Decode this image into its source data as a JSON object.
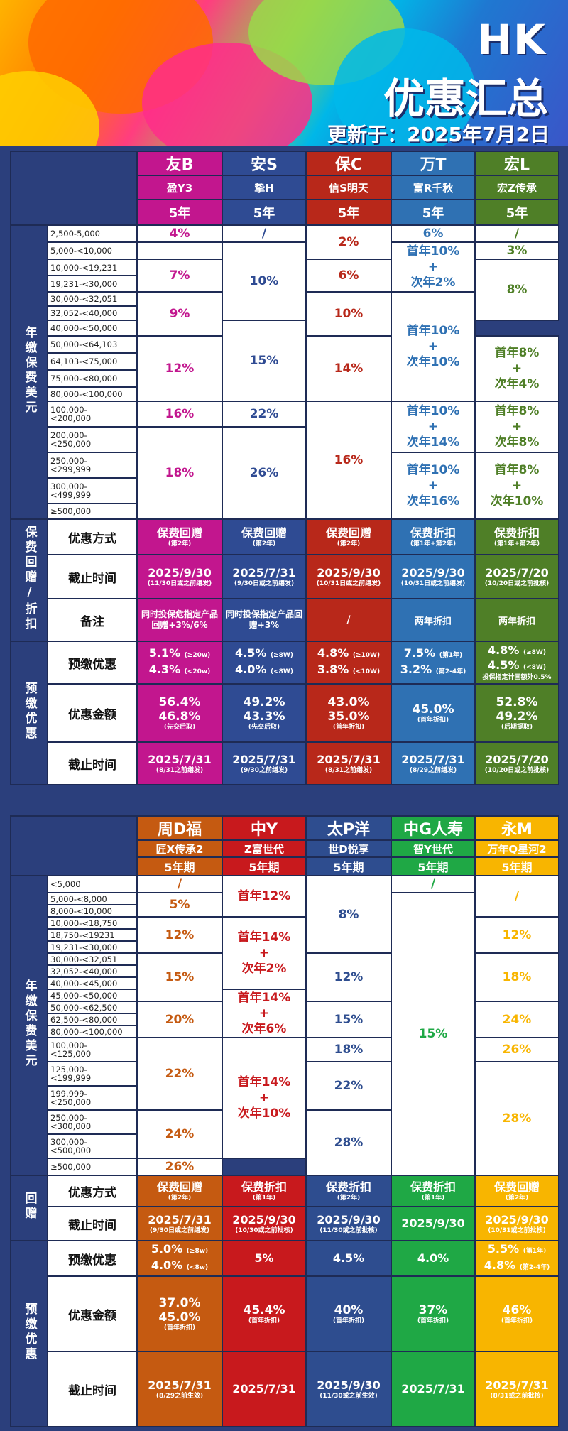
{
  "hero": {
    "hk": "HK",
    "title": "优惠汇总",
    "updated": "更新于：2025年7月2日"
  },
  "t1": {
    "companies": [
      {
        "name": "友B",
        "product": "盈Y3",
        "term": "5年"
      },
      {
        "name": "安S",
        "product": "挚H",
        "term": "5年"
      },
      {
        "name": "保C",
        "product": "信S明天",
        "term": "5年"
      },
      {
        "name": "万T",
        "product": "富R千秋",
        "term": "5年"
      },
      {
        "name": "宏L",
        "product": "宏Z传承",
        "term": "5年"
      }
    ],
    "sec_premium": "年缴保费美元",
    "ranges": [
      "2,500-5,000",
      "5,000-<10,000",
      "10,000-<19,231",
      "19,231-<30,000",
      "30,000-<32,051",
      "32,052-<40,000",
      "40,000-<50,000",
      "50,000-<64,103",
      "64,103-<75,000",
      "75,000-<80,000",
      "80,000-<100,000",
      "100,000-\n<200,000",
      "200,000-\n<250,000",
      "250,000-\n<299,999",
      "300,000-\n<499,999",
      "≥500,000"
    ],
    "c1": [
      "4%",
      "7%",
      "9%",
      "12%",
      "16%",
      "18%"
    ],
    "c2": [
      "/",
      "10%",
      "15%",
      "22%",
      "26%"
    ],
    "c3": [
      "2%",
      "6%",
      "10%",
      "14%",
      "16%"
    ],
    "c4": [
      "6%",
      "首年10%\n+\n次年2%",
      "首年10%\n+\n次年10%",
      "首年10%\n+\n次年14%",
      "首年10%\n+\n次年16%"
    ],
    "c5": [
      "/",
      "3%",
      "8%",
      "首年8%\n+\n次年4%",
      "首年8%\n+\n次年8%",
      "首年8%\n+\n次年10%"
    ],
    "sec_rebate": "保费回赠/折扣",
    "lab_method": "优惠方式",
    "lab_deadline": "截止时间",
    "lab_note": "备注",
    "method": [
      [
        "保费回赠",
        "(第2年)"
      ],
      [
        "保费回赠",
        "(第2年)"
      ],
      [
        "保费回赠",
        "(第2年)"
      ],
      [
        "保费折扣",
        "(第1年+第2年)"
      ],
      [
        "保费折扣",
        "(第1年+第2年)"
      ]
    ],
    "deadline": [
      [
        "2025/9/30",
        "(11/30日或之前缮发)"
      ],
      [
        "2025/7/31",
        "(9/30日或之前缮发)"
      ],
      [
        "2025/9/30",
        "(10/31日或之前缮发)"
      ],
      [
        "2025/9/30",
        "(10/31日或之前缮发)"
      ],
      [
        "2025/7/20",
        "(10/20日或之前批核)"
      ]
    ],
    "note": [
      "同时投保危指定产品回赠+3%/6%",
      "同时投保指定产品回赠+3%",
      "/",
      "两年折扣",
      "两年折扣"
    ],
    "sec_prepay": "预缴优惠",
    "lab_prepay": "预缴优惠",
    "lab_amount": "优惠金额",
    "lab_deadline2": "截止时间",
    "prepay": [
      [
        [
          "5.1%",
          "(≥20w)"
        ],
        [
          "4.3%",
          "(<20w)"
        ]
      ],
      [
        [
          "4.5%",
          "(≥8W)"
        ],
        [
          "4.0%",
          "(<8W)"
        ]
      ],
      [
        [
          "4.8%",
          "(≥10W)"
        ],
        [
          "3.8%",
          "(<10W)"
        ]
      ],
      [
        [
          "7.5%",
          "(第1年)"
        ],
        [
          "3.2%",
          "(第2-4年)"
        ]
      ],
      [
        [
          "4.8%",
          "(≥8W)"
        ],
        [
          "4.5%",
          "(<8W)"
        ],
        [
          "投保指定计画额外0.5%",
          ""
        ]
      ]
    ],
    "amount": [
      [
        "56.4%",
        "46.8%",
        "(先交后取)"
      ],
      [
        "49.2%",
        "43.3%",
        "(先交后取)"
      ],
      [
        "43.0%",
        "35.0%",
        "(首年折扣)"
      ],
      [
        "45.0%",
        "",
        "(首年折扣)"
      ],
      [
        "52.8%",
        "49.2%",
        "(后期提取)"
      ]
    ],
    "deadline2": [
      [
        "2025/7/31",
        "(8/31之前缮发)"
      ],
      [
        "2025/7/31",
        "(9/30之前缮发)"
      ],
      [
        "2025/7/31",
        "(8/31之前缮发)"
      ],
      [
        "2025/7/31",
        "(8/29之前缮发)"
      ],
      [
        "2025/7/20",
        "(10/20日或之前批核)"
      ]
    ]
  },
  "t2": {
    "companies": [
      {
        "name": "周D福",
        "product": "匠X传承2",
        "term": "5年期"
      },
      {
        "name": "中Y",
        "product": "Z富世代",
        "term": "5年期"
      },
      {
        "name": "太P洋",
        "product": "世D悦享",
        "term": "5年期"
      },
      {
        "name": "中G人寿",
        "product": "智Y世代",
        "term": "5年期"
      },
      {
        "name": "永M",
        "product": "万年Q星河2",
        "term": "5年期"
      }
    ],
    "sec_premium": "年缴保费美元",
    "ranges": [
      "<5,000",
      "5,000-<8,000",
      "8,000-<10,000",
      "10,000-<18,750",
      "18,750-<19231",
      "19,231-<30,000",
      "30,000-<32,051",
      "32,052-<40,000",
      "40,000-<45,000",
      "45,000-<50,000",
      "50,000-<62,500",
      "62,500-<80,000",
      "80,000-<100,000",
      "100,000-\n<125,000",
      "125,000-\n<199,999",
      "199,999-\n<250,000",
      "250,000-\n<300,000",
      "300,000-\n<500,000",
      "≥500,000"
    ],
    "d1": [
      "/",
      "5%",
      "12%",
      "15%",
      "20%",
      "22%",
      "24%",
      "26%"
    ],
    "d2": [
      "首年12%",
      "首年14%\n+\n次年2%",
      "首年14%\n+\n次年6%",
      "首年14%\n+\n次年10%"
    ],
    "d3": [
      "8%",
      "12%",
      "15%",
      "18%",
      "22%",
      "28%"
    ],
    "d4": [
      "/",
      "15%"
    ],
    "d5": [
      "/",
      "12%",
      "18%",
      "24%",
      "26%",
      "28%"
    ],
    "sec_rebate": "回赠",
    "lab_method": "优惠方式",
    "lab_deadline": "截止时间",
    "method": [
      [
        "保费回赠",
        "(第2年)"
      ],
      [
        "保费折扣",
        "(第1年)"
      ],
      [
        "保费折扣",
        "(第2年)"
      ],
      [
        "保费折扣",
        "(第1年)"
      ],
      [
        "保费回赠",
        "(第2年)"
      ]
    ],
    "deadline": [
      [
        "2025/7/31",
        "(9/30日或之前缮发)"
      ],
      [
        "2025/9/30",
        "(10/30或之前批核)"
      ],
      [
        "2025/9/30",
        "(11/30或之前批核)"
      ],
      [
        "2025/9/30",
        ""
      ],
      [
        "2025/9/30",
        "(10/31或之前批核)"
      ]
    ],
    "sec_prepay": "预缴优惠",
    "lab_prepay": "预缴优惠",
    "lab_amount": "优惠金额",
    "lab_deadline2": "截止时间",
    "prepay": [
      [
        [
          "5.0%",
          "(≥8w)"
        ],
        [
          "4.0%",
          "(<8w)"
        ]
      ],
      [
        [
          "5%",
          ""
        ]
      ],
      [
        [
          "4.5%",
          ""
        ]
      ],
      [
        [
          "4.0%",
          ""
        ]
      ],
      [
        [
          "5.5%",
          "(第1年)"
        ],
        [
          "4.8%",
          "(第2-4年)"
        ]
      ]
    ],
    "amount": [
      [
        "37.0%",
        "45.0%",
        "(首年折扣)"
      ],
      [
        "45.4%",
        "",
        "(首年折扣)"
      ],
      [
        "40%",
        "",
        "(首年折扣)"
      ],
      [
        "37%",
        "",
        "(首年折扣)"
      ],
      [
        "46%",
        "",
        "(首年折扣)"
      ]
    ],
    "deadline2": [
      [
        "2025/7/31",
        "(8/29之前生效)"
      ],
      [
        "2025/7/31",
        ""
      ],
      [
        "2025/9/30",
        "(11/30或之前生效)"
      ],
      [
        "2025/7/31",
        ""
      ],
      [
        "2025/7/31",
        "(8/31或之前批核)"
      ]
    ]
  }
}
